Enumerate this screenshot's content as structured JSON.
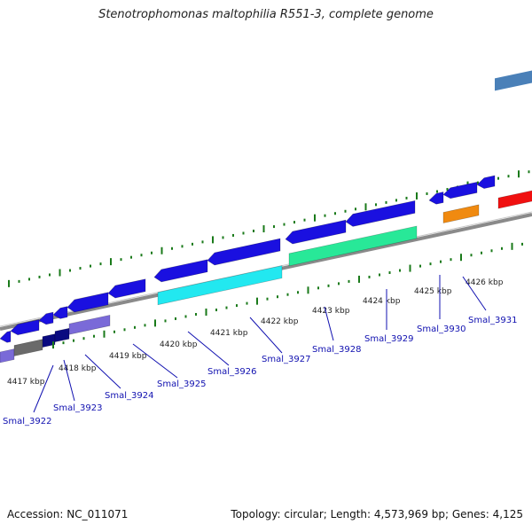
{
  "title": "Stenotrophomonas maltophilia R551-3, complete genome",
  "footer": {
    "accession": "Accession: NC_011071",
    "summary": "Topology: circular; Length: 4,573,969 bp; Genes: 4,125"
  },
  "ruler_labels": [
    "4417 kbp",
    "4418 kbp",
    "4419 kbp",
    "4420 kbp",
    "4421 kbp",
    "4422 kbp",
    "4423 kbp",
    "4424 kbp",
    "4425 kbp",
    "4426 kbp"
  ],
  "gene_labels": [
    "Smal_3922",
    "Smal_3923",
    "Smal_3924",
    "Smal_3925",
    "Smal_3926",
    "Smal_3927",
    "Smal_3928",
    "Smal_3929",
    "Smal_3930",
    "Smal_3931"
  ],
  "colors": {
    "backbone": "#8a8a8a",
    "ticks": "#1a7a1a",
    "cds": "#1a10e0",
    "gene_purple": "#7a6ad8",
    "gene_cyan": "#22e8f0",
    "gene_green": "#28e898",
    "gene_orange": "#f08a10",
    "gene_red": "#f01010",
    "gene_steel": "#4a80b8",
    "gene_gray": "#6a6a6a",
    "gene_navy": "#0a0a80",
    "label": "#1010b0"
  }
}
